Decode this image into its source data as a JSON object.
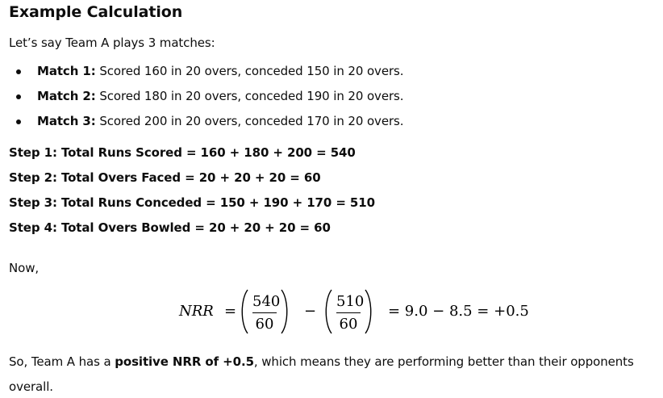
{
  "heading": "Example Calculation",
  "intro": "Let’s say Team A plays 3 matches:",
  "matches": [
    {
      "label": "Match 1:",
      "text": " Scored 160 in 20 overs, conceded 150 in 20 overs."
    },
    {
      "label": "Match 2:",
      "text": " Scored 180 in 20 overs, conceded 190 in 20 overs."
    },
    {
      "label": "Match 3:",
      "text": " Scored 200 in 20 overs, conceded 170 in 20 overs."
    }
  ],
  "steps": [
    {
      "label": "Step 1:",
      "text": " Total Runs Scored = 160 + 180 + 200 = 540"
    },
    {
      "label": "Step 2:",
      "text": " Total Overs Faced = 20 + 20 + 20 = 60"
    },
    {
      "label": "Step 3:",
      "text": " Total Runs Conceded = 150 + 190 + 170 = 510"
    },
    {
      "label": "Step 4:",
      "text": " Total Overs Bowled = 20 + 20 + 20 = 60"
    }
  ],
  "now": "Now,",
  "formula": {
    "variable": "NRR",
    "equals": "=",
    "fraction1": {
      "numerator": "540",
      "denominator": "60"
    },
    "minus": "−",
    "fraction2": {
      "numerator": "510",
      "denominator": "60"
    },
    "result": "= 9.0 − 8.5 = +0.5"
  },
  "conclusion": {
    "prefix": "So, Team A has a ",
    "emphasis": "positive NRR of +0.5",
    "suffix": ", which means they are performing better than their opponents",
    "continuation": "overall."
  }
}
